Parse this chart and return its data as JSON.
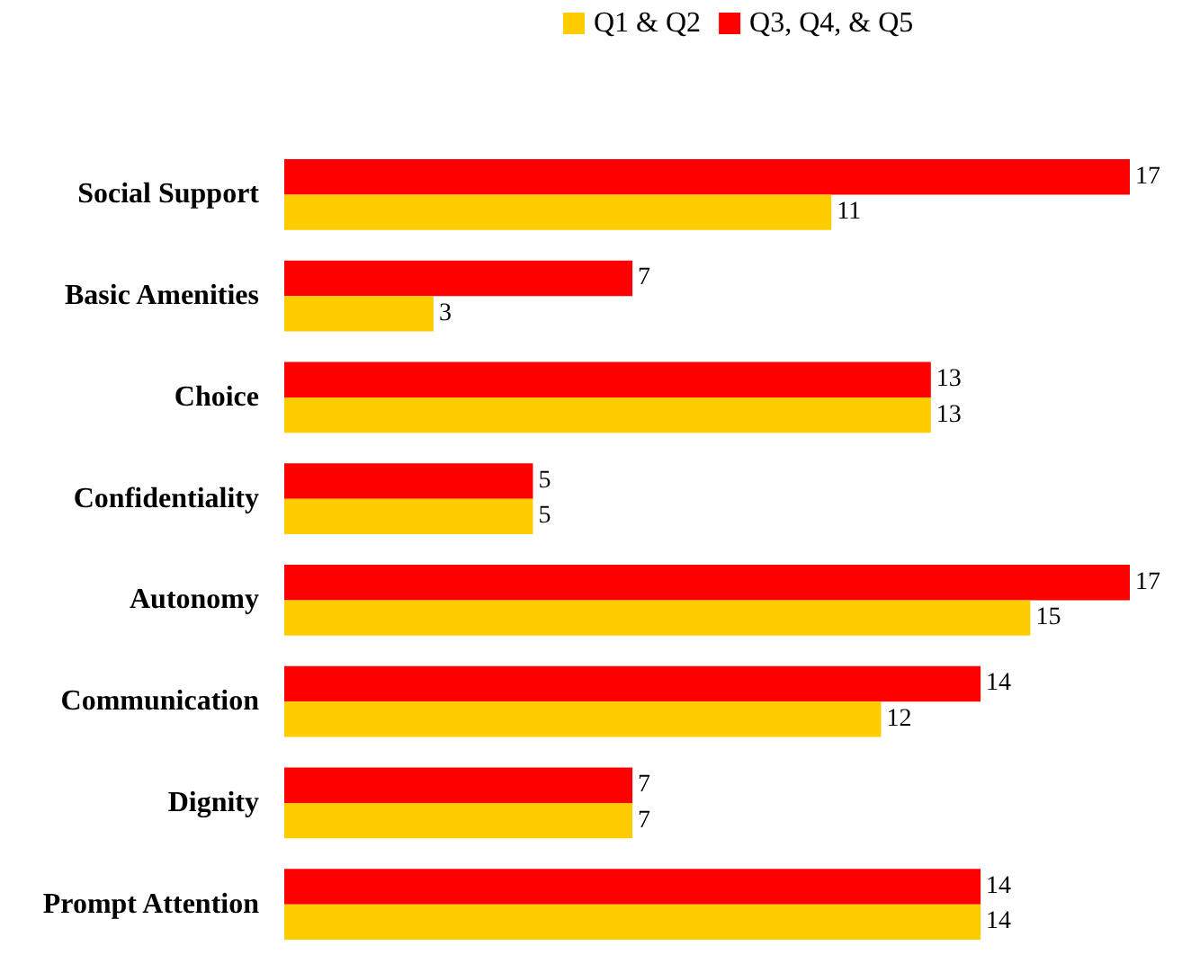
{
  "chart_data": {
    "type": "bar",
    "orientation": "horizontal",
    "categories": [
      "Social Support",
      "Basic Amenities",
      "Choice",
      "Confidentiality",
      "Autonomy",
      "Communication",
      "Dignity",
      "Prompt Attention"
    ],
    "series": [
      {
        "name": "Q1 & Q2",
        "color": "#ffcc00",
        "values": [
          11,
          3,
          13,
          5,
          15,
          12,
          7,
          14
        ]
      },
      {
        "name": "Q3, Q4, & Q5",
        "color": "#ff0000",
        "values": [
          17,
          7,
          13,
          5,
          17,
          14,
          7,
          14
        ]
      }
    ],
    "data_labels": true,
    "legend": "top"
  }
}
